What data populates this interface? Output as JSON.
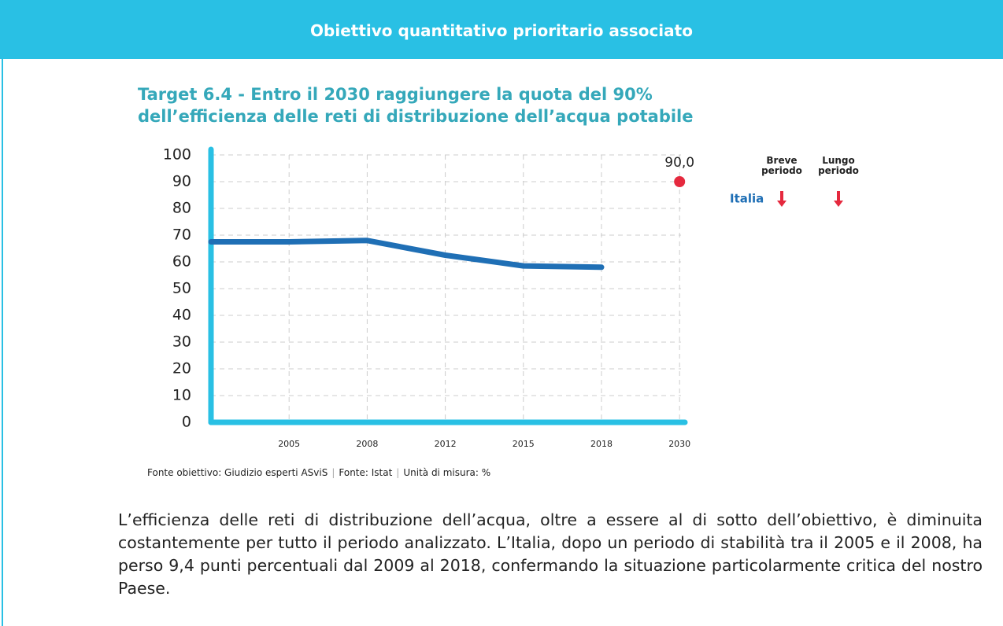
{
  "header": {
    "title": "Obiettivo quantitativo prioritario associato"
  },
  "chart_data": {
    "type": "line",
    "title": "Target 6.4 - Entro il 2030 raggiungere la quota del 90% dell’efficienza delle reti di distribuzione dell’acqua potabile",
    "categories": [
      null,
      "2005",
      "2008",
      "2012",
      "2015",
      "2018",
      "2030"
    ],
    "series": [
      {
        "name": "Italia",
        "color": "#1f6fb5",
        "values": [
          67.5,
          67.5,
          68,
          62.5,
          58.5,
          58,
          null
        ]
      },
      {
        "name": "Obiettivo",
        "color": "#e5293e",
        "values": [
          null,
          null,
          null,
          null,
          null,
          null,
          90
        ],
        "value_labels": [
          null,
          null,
          null,
          null,
          null,
          null,
          "90,0"
        ]
      }
    ],
    "ylim": [
      0,
      100
    ],
    "yticks": [
      0,
      10,
      20,
      30,
      40,
      50,
      60,
      70,
      80,
      90,
      100
    ],
    "grid": true,
    "trend": {
      "columns": [
        "Breve periodo",
        "Lungo periodo"
      ],
      "directions": [
        "down",
        "down"
      ],
      "color": "#e5293e"
    }
  },
  "source": [
    "Fonte obiettivo: Giudizio esperti ASviS",
    "Fonte: Istat",
    "Unità di misura: %"
  ],
  "paragraph": "L’efficienza delle reti di distribuzione dell’acqua, oltre a essere al di sotto dell’obiettivo, è diminuita costantemente per tutto il periodo analizzato. L’Italia, dopo un periodo di stabilità tra il 2005 e il 2008, ha perso 9,4 punti percentuali dal 2009 al 2018, confermando la situazione particolarmente critica del nostro Paese."
}
